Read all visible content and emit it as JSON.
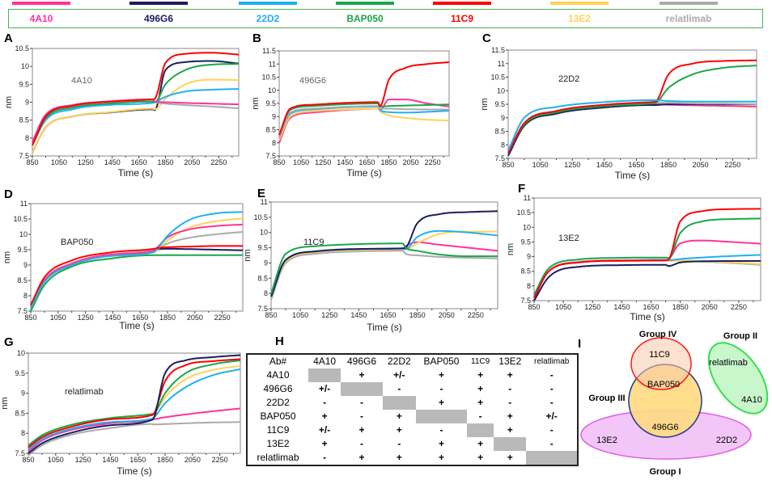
{
  "legend": [
    {
      "name": "4A10",
      "color": "#ff3399"
    },
    {
      "name": "496G6",
      "color": "#1a1f5e"
    },
    {
      "name": "22D2",
      "color": "#1fb0f0"
    },
    {
      "name": "BAP050",
      "color": "#1aa64a"
    },
    {
      "name": "11C9",
      "color": "#ff0000"
    },
    {
      "name": "13E2",
      "color": "#ffd257"
    },
    {
      "name": "relatlimab",
      "color": "#aaaaaa"
    }
  ],
  "chart_data": [
    {
      "panel": "A",
      "type": "line",
      "annotation": "4A10",
      "xlabel": "Time (s)",
      "ylabel": "nm",
      "xlim": [
        850,
        2400
      ],
      "ylim": [
        7.5,
        10.5
      ],
      "xticks": [
        850,
        1050,
        1250,
        1450,
        1650,
        1850,
        2050,
        2250
      ],
      "yticks": [
        7.5,
        8,
        8.5,
        9,
        9.5,
        10,
        10.5
      ],
      "x": [
        850,
        950,
        1150,
        1450,
        1750,
        1770,
        1850,
        2000,
        2200,
        2400
      ],
      "series": [
        {
          "name": "496G6",
          "values": [
            7.6,
            8.3,
            8.6,
            8.72,
            8.8,
            8.78,
            9.9,
            10.12,
            10.15,
            10.08
          ]
        },
        {
          "name": "13E2",
          "values": [
            7.6,
            8.3,
            8.6,
            8.73,
            8.82,
            8.8,
            9.1,
            9.5,
            9.63,
            9.62
          ]
        },
        {
          "name": "relatlimab",
          "values": [
            7.8,
            8.55,
            8.85,
            8.97,
            9.02,
            9.0,
            8.96,
            8.92,
            8.88,
            8.83
          ]
        },
        {
          "name": "22D2",
          "values": [
            7.8,
            8.5,
            8.8,
            8.93,
            8.98,
            9.0,
            9.15,
            9.3,
            9.35,
            9.37
          ]
        },
        {
          "name": "BAP050",
          "values": [
            7.8,
            8.55,
            8.85,
            8.97,
            9.02,
            9.0,
            9.5,
            9.9,
            10.05,
            10.07
          ]
        },
        {
          "name": "4A10",
          "values": [
            7.9,
            8.65,
            8.92,
            9.03,
            9.08,
            9.02,
            9.0,
            8.98,
            8.96,
            8.94
          ]
        },
        {
          "name": "11C9",
          "values": [
            7.8,
            8.6,
            8.9,
            9.02,
            9.08,
            9.1,
            10.1,
            10.35,
            10.38,
            10.33
          ]
        }
      ]
    },
    {
      "panel": "B",
      "type": "line",
      "annotation": "496G6",
      "xlabel": "Time (s)",
      "ylabel": "nm",
      "xlim": [
        850,
        2400
      ],
      "ylim": [
        7.5,
        11.5
      ],
      "xticks": [
        850,
        1050,
        1250,
        1450,
        1650,
        1850,
        2050,
        2250
      ],
      "yticks": [
        7.5,
        8,
        8.5,
        9,
        9.5,
        10,
        10.5,
        11,
        11.5
      ],
      "x": [
        850,
        950,
        1150,
        1450,
        1750,
        1770,
        1850,
        2000,
        2200,
        2400
      ],
      "series": [
        {
          "name": "4A10",
          "values": [
            8.0,
            8.95,
            9.15,
            9.25,
            9.3,
            9.25,
            9.65,
            9.65,
            9.5,
            9.38
          ]
        },
        {
          "name": "13E2",
          "values": [
            8.1,
            9.0,
            9.2,
            9.27,
            9.3,
            9.2,
            9.05,
            8.95,
            8.88,
            8.85
          ]
        },
        {
          "name": "22D2",
          "values": [
            8.2,
            9.1,
            9.27,
            9.35,
            9.38,
            9.25,
            9.17,
            9.15,
            9.18,
            9.22
          ]
        },
        {
          "name": "relatlimab",
          "values": [
            8.2,
            9.15,
            9.3,
            9.37,
            9.4,
            9.3,
            9.3,
            9.28,
            9.27,
            9.27
          ]
        },
        {
          "name": "BAP050",
          "values": [
            8.3,
            9.25,
            9.4,
            9.47,
            9.5,
            9.38,
            9.4,
            9.42,
            9.44,
            9.46
          ]
        },
        {
          "name": "11C9",
          "values": [
            8.3,
            9.3,
            9.45,
            9.52,
            9.55,
            9.4,
            10.4,
            10.85,
            11.0,
            11.07
          ]
        }
      ]
    },
    {
      "panel": "C",
      "type": "line",
      "annotation": "22D2",
      "xlabel": "Time (s)",
      "ylabel": "nm",
      "xlim": [
        850,
        2400
      ],
      "ylim": [
        7.5,
        11.5
      ],
      "xticks": [
        850,
        1050,
        1250,
        1450,
        1650,
        1850,
        2050,
        2250
      ],
      "yticks": [
        7.5,
        8,
        8.5,
        9,
        9.5,
        10,
        10.5,
        11,
        11.5
      ],
      "x": [
        850,
        950,
        1150,
        1450,
        1750,
        1770,
        1850,
        2000,
        2200,
        2400
      ],
      "series": [
        {
          "name": "13E2",
          "values": [
            7.7,
            8.75,
            9.2,
            9.42,
            9.5,
            9.5,
            9.5,
            9.47,
            9.44,
            9.4
          ]
        },
        {
          "name": "4A10",
          "values": [
            7.7,
            8.75,
            9.2,
            9.42,
            9.5,
            9.5,
            9.48,
            9.46,
            9.44,
            9.42
          ]
        },
        {
          "name": "496G6",
          "values": [
            7.6,
            8.7,
            9.15,
            9.38,
            9.47,
            9.47,
            9.5,
            9.5,
            9.5,
            9.5
          ]
        },
        {
          "name": "relatlimab",
          "values": [
            7.7,
            8.8,
            9.25,
            9.45,
            9.55,
            9.55,
            9.55,
            9.53,
            9.52,
            9.5
          ]
        },
        {
          "name": "BAP050",
          "values": [
            7.7,
            8.75,
            9.2,
            9.43,
            9.53,
            9.55,
            10.1,
            10.6,
            10.85,
            10.93
          ]
        },
        {
          "name": "11C9",
          "values": [
            7.7,
            8.8,
            9.25,
            9.48,
            9.58,
            9.6,
            10.6,
            11.0,
            11.1,
            11.12
          ]
        },
        {
          "name": "22D2",
          "values": [
            7.8,
            9.0,
            9.4,
            9.58,
            9.65,
            9.65,
            9.62,
            9.6,
            9.6,
            9.6
          ]
        }
      ]
    },
    {
      "panel": "D",
      "type": "line",
      "annotation": "BAP050",
      "xlabel": "Time (s)",
      "ylabel": "nm",
      "xlim": [
        850,
        2400
      ],
      "ylim": [
        7.5,
        11
      ],
      "xticks": [
        850,
        1050,
        1250,
        1450,
        1650,
        1850,
        2050,
        2250
      ],
      "yticks": [
        7.5,
        8,
        8.5,
        9,
        9.5,
        10,
        10.5,
        11
      ],
      "x": [
        850,
        950,
        1150,
        1450,
        1750,
        1770,
        1850,
        2000,
        2200,
        2400
      ],
      "series": [
        {
          "name": "BAP050",
          "values": [
            7.5,
            8.35,
            8.95,
            9.22,
            9.32,
            9.32,
            9.32,
            9.32,
            9.32,
            9.32
          ]
        },
        {
          "name": "496G6",
          "values": [
            7.6,
            8.5,
            9.05,
            9.33,
            9.45,
            9.5,
            9.53,
            9.52,
            9.5,
            9.48
          ]
        },
        {
          "name": "relatlimab",
          "values": [
            7.65,
            8.5,
            9.05,
            9.35,
            9.48,
            9.5,
            9.7,
            9.88,
            10.0,
            10.08
          ]
        },
        {
          "name": "13E2",
          "values": [
            7.6,
            8.45,
            9.0,
            9.3,
            9.42,
            9.5,
            9.8,
            10.2,
            10.42,
            10.52
          ]
        },
        {
          "name": "4A10",
          "values": [
            7.65,
            8.5,
            9.05,
            9.35,
            9.47,
            9.55,
            9.9,
            10.15,
            10.27,
            10.32
          ]
        },
        {
          "name": "22D2",
          "values": [
            7.6,
            8.45,
            9.0,
            9.3,
            9.42,
            9.5,
            9.95,
            10.45,
            10.68,
            10.73
          ]
        },
        {
          "name": "11C9",
          "values": [
            7.7,
            8.6,
            9.15,
            9.42,
            9.53,
            9.55,
            9.58,
            9.6,
            9.62,
            9.62
          ]
        }
      ]
    },
    {
      "panel": "E",
      "type": "line",
      "annotation": "11C9",
      "xlabel": "Time (s)",
      "ylabel": "nm",
      "xlim": [
        850,
        2400
      ],
      "ylim": [
        7.5,
        11
      ],
      "xticks": [
        850,
        1050,
        1250,
        1450,
        1650,
        1850,
        2050,
        2250
      ],
      "yticks": [
        7.5,
        8,
        8.5,
        9,
        9.5,
        10,
        10.5,
        11
      ],
      "x": [
        850,
        950,
        1150,
        1450,
        1750,
        1770,
        1850,
        2000,
        2200,
        2400
      ],
      "series": [
        {
          "name": "relatlimab",
          "values": [
            7.8,
            9.0,
            9.3,
            9.38,
            9.4,
            9.3,
            9.25,
            9.2,
            9.17,
            9.15
          ]
        },
        {
          "name": "4A10",
          "values": [
            7.9,
            9.05,
            9.35,
            9.43,
            9.45,
            9.55,
            9.68,
            9.6,
            9.5,
            9.4
          ]
        },
        {
          "name": "13E2",
          "values": [
            7.9,
            9.05,
            9.35,
            9.42,
            9.45,
            9.45,
            9.65,
            9.95,
            10.03,
            10.03
          ]
        },
        {
          "name": "22D2",
          "values": [
            7.9,
            9.1,
            9.38,
            9.45,
            9.47,
            9.45,
            9.85,
            10.05,
            10.0,
            9.9
          ]
        },
        {
          "name": "496G6",
          "values": [
            7.9,
            9.1,
            9.38,
            9.46,
            9.48,
            9.5,
            10.3,
            10.6,
            10.67,
            10.7
          ]
        },
        {
          "name": "BAP050",
          "values": [
            8.0,
            9.3,
            9.55,
            9.62,
            9.64,
            9.5,
            9.4,
            9.28,
            9.22,
            9.22
          ]
        }
      ]
    },
    {
      "panel": "F",
      "type": "line",
      "annotation": "13E2",
      "xlabel": "Time (s)",
      "ylabel": "nm",
      "xlim": [
        850,
        2400
      ],
      "ylim": [
        7.5,
        11
      ],
      "xticks": [
        850,
        1050,
        1250,
        1450,
        1650,
        1850,
        2050,
        2250
      ],
      "yticks": [
        7.5,
        8,
        8.5,
        9,
        9.5,
        10,
        10.5,
        11
      ],
      "x": [
        850,
        950,
        1150,
        1450,
        1750,
        1770,
        1850,
        2000,
        2200,
        2400
      ],
      "series": [
        {
          "name": "relatlimab",
          "values": [
            7.6,
            8.5,
            8.82,
            8.88,
            8.9,
            8.88,
            8.86,
            8.83,
            8.78,
            8.72
          ]
        },
        {
          "name": "13E2",
          "values": [
            7.6,
            8.5,
            8.8,
            8.86,
            8.87,
            8.85,
            8.87,
            8.85,
            8.8,
            8.75
          ]
        },
        {
          "name": "496G6",
          "values": [
            7.5,
            8.3,
            8.65,
            8.71,
            8.72,
            8.68,
            8.8,
            8.84,
            8.85,
            8.85
          ]
        },
        {
          "name": "22D2",
          "values": [
            7.6,
            8.5,
            8.8,
            8.86,
            8.88,
            8.88,
            8.92,
            8.97,
            9.02,
            9.06
          ]
        },
        {
          "name": "4A10",
          "values": [
            7.6,
            8.5,
            8.8,
            8.86,
            8.87,
            8.9,
            9.45,
            9.55,
            9.5,
            9.44
          ]
        },
        {
          "name": "BAP050",
          "values": [
            7.7,
            8.6,
            8.9,
            8.96,
            8.97,
            8.95,
            9.8,
            10.2,
            10.28,
            10.3
          ]
        },
        {
          "name": "11C9",
          "values": [
            7.6,
            8.5,
            8.8,
            8.86,
            8.87,
            8.9,
            10.2,
            10.55,
            10.62,
            10.63
          ]
        }
      ]
    },
    {
      "panel": "G",
      "type": "line",
      "annotation": "relatlimab",
      "xlabel": "Time (s)",
      "ylabel": "nm",
      "xlim": [
        850,
        2400
      ],
      "ylim": [
        7.5,
        10
      ],
      "xticks": [
        850,
        1050,
        1250,
        1450,
        1650,
        1850,
        2050,
        2250
      ],
      "yticks": [
        7.5,
        8,
        8.5,
        9,
        9.5,
        10
      ],
      "x": [
        850,
        950,
        1150,
        1450,
        1750,
        1770,
        1850,
        2000,
        2200,
        2400
      ],
      "series": [
        {
          "name": "relatlimab",
          "values": [
            7.45,
            7.7,
            7.95,
            8.13,
            8.23,
            8.22,
            8.23,
            8.25,
            8.27,
            8.28
          ]
        },
        {
          "name": "4A10",
          "values": [
            7.55,
            7.82,
            8.07,
            8.25,
            8.33,
            8.35,
            8.4,
            8.47,
            8.55,
            8.62
          ]
        },
        {
          "name": "22D2",
          "values": [
            7.6,
            7.85,
            8.1,
            8.28,
            8.36,
            8.4,
            8.75,
            9.15,
            9.45,
            9.6
          ]
        },
        {
          "name": "13E2",
          "values": [
            7.65,
            7.92,
            8.18,
            8.37,
            8.48,
            8.5,
            8.9,
            9.35,
            9.58,
            9.68
          ]
        },
        {
          "name": "BAP050",
          "values": [
            7.7,
            7.95,
            8.2,
            8.38,
            8.48,
            8.5,
            9.0,
            9.5,
            9.72,
            9.82
          ]
        },
        {
          "name": "11C9",
          "values": [
            7.65,
            7.9,
            8.15,
            8.35,
            8.45,
            8.5,
            9.3,
            9.7,
            9.8,
            9.85
          ]
        },
        {
          "name": "496G6",
          "values": [
            7.5,
            7.75,
            8.0,
            8.2,
            8.33,
            8.4,
            9.5,
            9.82,
            9.9,
            9.95
          ]
        }
      ]
    }
  ],
  "binning_table": {
    "panel": "H",
    "columns": [
      "Ab#",
      "4A10",
      "496G6",
      "22D2",
      "BAP050",
      "11C9",
      "13E2",
      "relatlimab"
    ],
    "rows": [
      [
        "4A10",
        "",
        "+",
        "+/-",
        "+",
        "+",
        "+",
        "-"
      ],
      [
        "496G6",
        "+/-",
        "",
        "-",
        "-",
        "+",
        "-",
        "-"
      ],
      [
        "22D2",
        "-",
        "-",
        "",
        "+",
        "+",
        "-",
        "-"
      ],
      [
        "BAP050",
        "+",
        "-",
        "+",
        "",
        "-",
        "+",
        "+/-"
      ],
      [
        "11C9",
        "+/-",
        "+",
        "+",
        "-",
        "",
        "+",
        "-"
      ],
      [
        "13E2",
        "+",
        "-",
        "-",
        "+",
        "+",
        "",
        "-"
      ],
      [
        "relatlimab",
        "-",
        "+",
        "+",
        "+",
        "+",
        "+",
        ""
      ]
    ]
  },
  "venn": {
    "panel": "I",
    "groups": {
      "g1": "Group I",
      "g2": "Group II",
      "g3": "Group III",
      "g4": "Group IV"
    },
    "members": {
      "c11C9": "11C9",
      "bap050": "BAP050",
      "g496": "496G6",
      "e13": "13E2",
      "d22": "22D2",
      "relat": "relatlimab",
      "a4": "4A10"
    }
  }
}
